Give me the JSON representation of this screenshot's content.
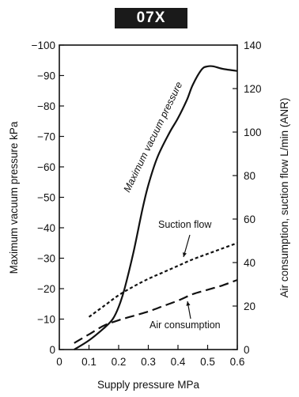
{
  "chart_data": {
    "type": "line",
    "title": "07X",
    "xlabel": "Supply pressure MPa",
    "ylabel_left": "Maximum vacuum pressure  kPa",
    "ylabel_right": "Air consumption, suction flow L/min (ANR)",
    "xlim": [
      0,
      0.6
    ],
    "xticks": [
      "0",
      "0.1",
      "0.2",
      "0.3",
      "0.4",
      "0.5",
      "0.6"
    ],
    "ylim_left": [
      0,
      -100
    ],
    "yticks_left": [
      "0",
      "−10",
      "−20",
      "−30",
      "−40",
      "−50",
      "−60",
      "−70",
      "−80",
      "−90",
      "−100"
    ],
    "ylim_right": [
      0,
      140
    ],
    "yticks_right": [
      "0",
      "20",
      "40",
      "60",
      "80",
      "100",
      "120",
      "140"
    ],
    "grid": false,
    "series": [
      {
        "name": "Maximum vacuum pressure",
        "axis": "left",
        "style": "solid",
        "x": [
          0.05,
          0.1,
          0.15,
          0.18,
          0.2,
          0.22,
          0.25,
          0.28,
          0.3,
          0.33,
          0.37,
          0.4,
          0.43,
          0.45,
          0.48,
          0.5,
          0.52,
          0.55,
          0.6
        ],
        "y": [
          0,
          -3,
          -7,
          -10,
          -14,
          -20,
          -32,
          -46,
          -54,
          -63,
          -71,
          -76,
          -82,
          -87,
          -92,
          -93,
          -93,
          -92.2,
          -91.5
        ]
      },
      {
        "name": "Suction flow",
        "axis": "right",
        "style": "dotted",
        "x": [
          0.1,
          0.15,
          0.2,
          0.25,
          0.3,
          0.35,
          0.4,
          0.45,
          0.5,
          0.55,
          0.6
        ],
        "y": [
          15,
          20,
          25,
          29,
          32.5,
          35.5,
          38.5,
          41.5,
          44,
          46.5,
          49
        ]
      },
      {
        "name": "Air consumption",
        "axis": "right",
        "style": "dashed",
        "x": [
          0.05,
          0.1,
          0.15,
          0.2,
          0.25,
          0.3,
          0.35,
          0.4,
          0.45,
          0.5,
          0.55,
          0.6
        ],
        "y": [
          3,
          7,
          11,
          13.5,
          15.5,
          17.5,
          20,
          22.5,
          25.5,
          27.5,
          29.5,
          32
        ]
      }
    ],
    "annotations": [
      "Maximum vacuum pressure",
      "Suction flow",
      "Air consumption"
    ]
  }
}
